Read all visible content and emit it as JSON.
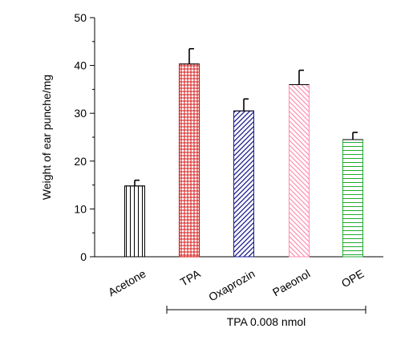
{
  "chart_data": {
    "type": "bar",
    "ylabel": "Weight of ear punche/mg",
    "xlabel": "",
    "ylim": [
      0,
      50
    ],
    "yticks": [
      0,
      10,
      20,
      30,
      40,
      50
    ],
    "grid": false,
    "categories": [
      "Acetone",
      "TPA",
      "Oxaprozin",
      "Paeonol",
      "OPE"
    ],
    "values": [
      14.8,
      40.3,
      30.5,
      36.0,
      24.5
    ],
    "errors": [
      1.2,
      3.2,
      2.5,
      3.0,
      1.5
    ],
    "bar_colors": [
      "#000000",
      "#d40000",
      "#1a1a8c",
      "#ff8fb0",
      "#22aa33"
    ],
    "bar_patterns": [
      "vertical-lines",
      "grid",
      "diagonal-forward",
      "diagonal-back",
      "horizontal-lines"
    ],
    "group_annotation": {
      "label": "TPA 0.008 nmol",
      "span": [
        "TPA",
        "OPE"
      ]
    }
  }
}
